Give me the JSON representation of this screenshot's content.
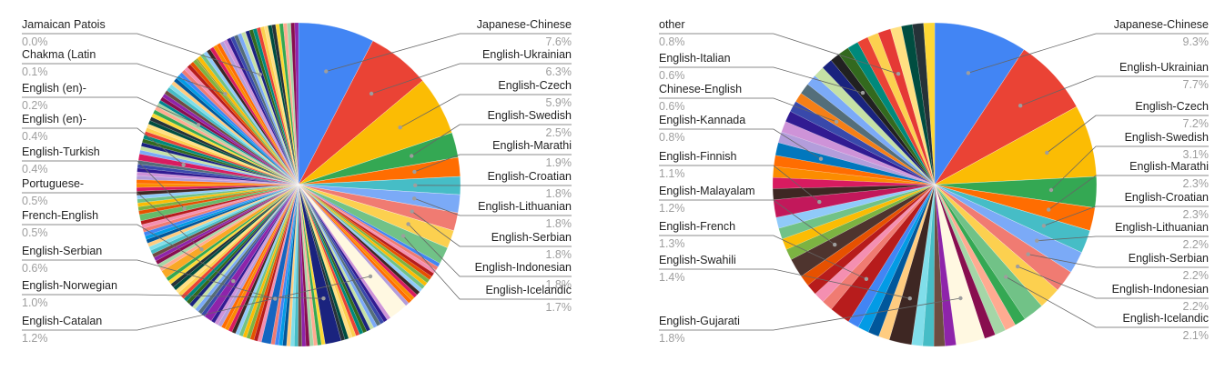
{
  "chart_data": [
    {
      "type": "pie",
      "title": "",
      "labeled_slices": [
        {
          "name": "Japanese-Chinese",
          "value_label": "7.6%",
          "value": 7.6,
          "color": "#4285F4"
        },
        {
          "name": "English-Ukrainian",
          "value_label": "6.3%",
          "value": 6.3,
          "color": "#EA4335"
        },
        {
          "name": "English-Czech",
          "value_label": "5.9%",
          "value": 5.9,
          "color": "#FBBC04"
        },
        {
          "name": "English-Swedish",
          "value_label": "2.5%",
          "value": 2.5,
          "color": "#34A853"
        },
        {
          "name": "English-Marathi",
          "value_label": "1.9%",
          "value": 1.9,
          "color": "#FF6D01"
        },
        {
          "name": "English-Croatian",
          "value_label": "1.8%",
          "value": 1.8,
          "color": "#46BDC6"
        },
        {
          "name": "English-Lithuanian",
          "value_label": "1.8%",
          "value": 1.8,
          "color": "#7BAAF7"
        },
        {
          "name": "English-Serbian",
          "value_label": "1.8%",
          "value": 1.8,
          "color": "#F07B72"
        },
        {
          "name": "English-Indonesian",
          "value_label": "1.8%",
          "value": 1.8,
          "color": "#FCD04F"
        },
        {
          "name": "English-Icelandic",
          "value_label": "1.7%",
          "value": 1.7,
          "color": "#71C287"
        },
        {
          "name": "English-Catalan",
          "value_label": "1.2%",
          "value": 1.2,
          "color": "#FFF8E1"
        },
        {
          "name": "English-Norwegian",
          "value_label": "1.0%",
          "value": 1.0,
          "color": "#1A237E"
        },
        {
          "name": "English-Serbian",
          "value_label": "0.6%",
          "value": 0.6,
          "color": "#1565C0"
        },
        {
          "name": "French-English",
          "value_label": "0.5%",
          "value": 0.5,
          "color": "#8E24AA"
        },
        {
          "name": "Portuguese-",
          "value_label": "0.5%",
          "value": 0.5,
          "color": "#F9A825"
        },
        {
          "name": "English-Turkish",
          "value_label": "0.4%",
          "value": 0.4,
          "color": "#66BB6A"
        },
        {
          "name": "English (en)-",
          "value_label": "0.4%",
          "value": 0.4,
          "color": "#D81B60"
        },
        {
          "name": "English (en)-",
          "value_label": "0.2%",
          "value": 0.2,
          "color": "#00838F"
        },
        {
          "name": "Chakma (Latin",
          "value_label": "0.1%",
          "value": 0.1,
          "color": "#9E9D24"
        },
        {
          "name": "Jamaican Patois",
          "value_label": "0.0%",
          "value": 0.0,
          "color": "#BDBDBD"
        }
      ]
    },
    {
      "type": "pie",
      "title": "",
      "labeled_slices": [
        {
          "name": "Japanese-Chinese",
          "value_label": "9.3%",
          "value": 9.3,
          "color": "#4285F4"
        },
        {
          "name": "English-Ukrainian",
          "value_label": "7.7%",
          "value": 7.7,
          "color": "#EA4335"
        },
        {
          "name": "English-Czech",
          "value_label": "7.2%",
          "value": 7.2,
          "color": "#FBBC04"
        },
        {
          "name": "English-Swedish",
          "value_label": "3.1%",
          "value": 3.1,
          "color": "#34A853"
        },
        {
          "name": "English-Marathi",
          "value_label": "2.3%",
          "value": 2.3,
          "color": "#FF6D01"
        },
        {
          "name": "English-Croatian",
          "value_label": "2.3%",
          "value": 2.3,
          "color": "#46BDC6"
        },
        {
          "name": "English-Lithuanian",
          "value_label": "2.2%",
          "value": 2.2,
          "color": "#7BAAF7"
        },
        {
          "name": "English-Serbian",
          "value_label": "2.2%",
          "value": 2.2,
          "color": "#F07B72"
        },
        {
          "name": "English-Indonesian",
          "value_label": "2.2%",
          "value": 2.2,
          "color": "#FCD04F"
        },
        {
          "name": "English-Icelandic",
          "value_label": "2.1%",
          "value": 2.1,
          "color": "#71C287"
        },
        {
          "name": "English-Gujarati",
          "value_label": "1.8%",
          "value": 1.8,
          "color": "#FFF8E1"
        },
        {
          "name": "English-Swahili",
          "value_label": "1.4%",
          "value": 1.4,
          "color": "#3E2723"
        },
        {
          "name": "English-French",
          "value_label": "1.3%",
          "value": 1.3,
          "color": "#B71C1C"
        },
        {
          "name": "English-Malayalam",
          "value_label": "1.2%",
          "value": 1.2,
          "color": "#4E342E"
        },
        {
          "name": "English-Finnish",
          "value_label": "1.1%",
          "value": 1.1,
          "color": "#C2185B"
        },
        {
          "name": "English-Kannada",
          "value_label": "0.8%",
          "value": 0.8,
          "color": "#0277BD"
        },
        {
          "name": "Chinese-English",
          "value_label": "0.6%",
          "value": 0.6,
          "color": "#F57F17"
        },
        {
          "name": "English-Italian",
          "value_label": "0.6%",
          "value": 0.6,
          "color": "#212121"
        },
        {
          "name": "other",
          "value_label": "0.8%",
          "value": 0.8,
          "color": "#E53935"
        }
      ]
    }
  ]
}
